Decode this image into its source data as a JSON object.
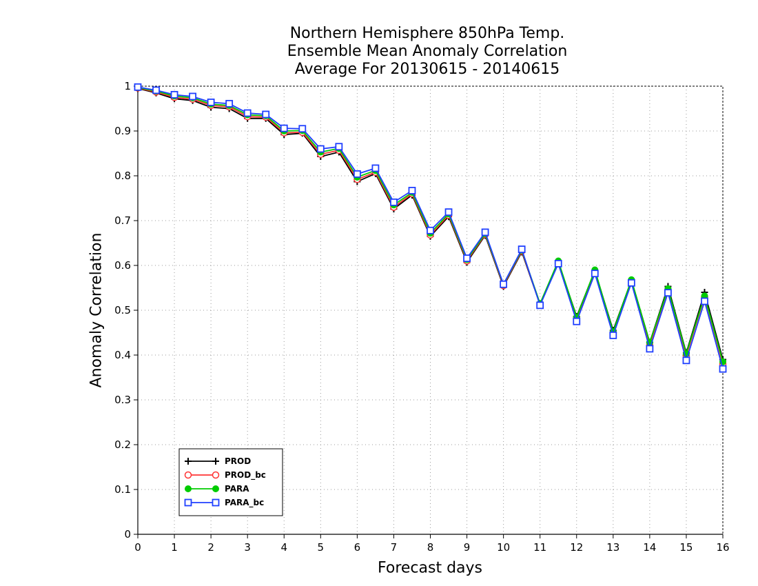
{
  "chart_data": {
    "type": "line",
    "title": [
      "Northern Hemisphere 850hPa Temp.",
      "Ensemble Mean Anomaly Correlation",
      "Average For 20130615 - 20140615"
    ],
    "xlabel": "Forecast days",
    "ylabel": "Anomaly Correlation",
    "xlim": [
      0,
      16
    ],
    "ylim": [
      0,
      1
    ],
    "x_ticks": [
      "0",
      "1",
      "2",
      "3",
      "4",
      "5",
      "6",
      "7",
      "8",
      "9",
      "10",
      "11",
      "12",
      "13",
      "14",
      "15",
      "16"
    ],
    "y_ticks": [
      "0",
      "0.1",
      "0.2",
      "0.3",
      "0.4",
      "0.5",
      "0.6",
      "0.7",
      "0.8",
      "0.9",
      "1"
    ],
    "grid": true,
    "legend_position": "bottom-left",
    "x": [
      0,
      0.5,
      1,
      1.5,
      2,
      2.5,
      3,
      3.5,
      4,
      4.5,
      5,
      5.5,
      6,
      6.5,
      7,
      7.5,
      8,
      8.5,
      9,
      9.5,
      10,
      10.5,
      11,
      11.5,
      12,
      12.5,
      13,
      13.5,
      14,
      14.5,
      15,
      15.5,
      16
    ],
    "series": [
      {
        "name": "PROD",
        "color": "#000000",
        "marker": "plus",
        "values": [
          0.995,
          0.985,
          0.972,
          0.968,
          0.953,
          0.95,
          0.928,
          0.928,
          0.892,
          0.895,
          0.843,
          0.853,
          0.787,
          0.805,
          0.726,
          0.757,
          0.665,
          0.709,
          0.607,
          0.667,
          0.553,
          0.63,
          0.513,
          0.607,
          0.486,
          0.588,
          0.455,
          0.567,
          0.428,
          0.553,
          0.405,
          0.54,
          0.39
        ]
      },
      {
        "name": "PROD_bc",
        "color": "#ff3333",
        "marker": "circle",
        "values": [
          0.996,
          0.987,
          0.975,
          0.971,
          0.957,
          0.954,
          0.932,
          0.931,
          0.896,
          0.897,
          0.848,
          0.857,
          0.792,
          0.808,
          0.73,
          0.76,
          0.668,
          0.712,
          0.61,
          0.669,
          0.555,
          0.632,
          0.514,
          0.606,
          0.483,
          0.585,
          0.45,
          0.563,
          0.422,
          0.546,
          0.398,
          0.53,
          0.38
        ]
      },
      {
        "name": "PARA",
        "color": "#00cc00",
        "marker": "dot",
        "values": [
          0.997,
          0.989,
          0.978,
          0.974,
          0.96,
          0.957,
          0.936,
          0.934,
          0.9,
          0.901,
          0.853,
          0.861,
          0.797,
          0.812,
          0.735,
          0.763,
          0.672,
          0.715,
          0.613,
          0.671,
          0.557,
          0.634,
          0.515,
          0.61,
          0.484,
          0.59,
          0.452,
          0.568,
          0.428,
          0.548,
          0.403,
          0.532,
          0.385
        ]
      },
      {
        "name": "PARA_bc",
        "color": "#1f3fff",
        "marker": "square",
        "values": [
          0.998,
          0.991,
          0.981,
          0.977,
          0.964,
          0.961,
          0.94,
          0.937,
          0.906,
          0.905,
          0.86,
          0.865,
          0.804,
          0.817,
          0.741,
          0.767,
          0.678,
          0.719,
          0.616,
          0.674,
          0.558,
          0.636,
          0.511,
          0.604,
          0.475,
          0.582,
          0.444,
          0.561,
          0.414,
          0.539,
          0.388,
          0.52,
          0.369
        ]
      }
    ]
  }
}
